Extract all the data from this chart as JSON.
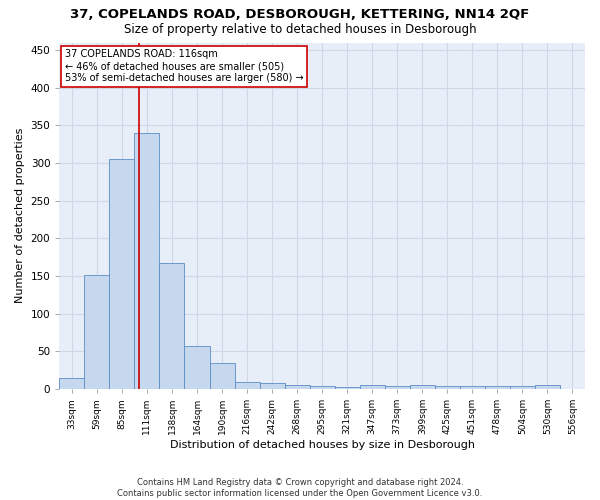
{
  "title": "37, COPELANDS ROAD, DESBOROUGH, KETTERING, NN14 2QF",
  "subtitle": "Size of property relative to detached houses in Desborough",
  "xlabel": "Distribution of detached houses by size in Desborough",
  "ylabel": "Number of detached properties",
  "bar_color": "#c5d8ee",
  "bar_edge_color": "#5b8cc8",
  "bin_labels": [
    "33sqm",
    "59sqm",
    "85sqm",
    "111sqm",
    "138sqm",
    "164sqm",
    "190sqm",
    "216sqm",
    "242sqm",
    "268sqm",
    "295sqm",
    "321sqm",
    "347sqm",
    "373sqm",
    "399sqm",
    "425sqm",
    "451sqm",
    "478sqm",
    "504sqm",
    "530sqm",
    "556sqm"
  ],
  "bar_values": [
    15,
    152,
    305,
    340,
    167,
    57,
    35,
    10,
    8,
    6,
    4,
    3,
    5,
    4,
    5,
    4,
    4,
    4,
    4,
    5,
    0
  ],
  "bin_edges": [
    33,
    59,
    85,
    111,
    138,
    164,
    190,
    216,
    242,
    268,
    295,
    321,
    347,
    373,
    399,
    425,
    451,
    478,
    504,
    530,
    556
  ],
  "property_size": 116,
  "red_line_color": "#cc0000",
  "annotation_line1": "37 COPELANDS ROAD: 116sqm",
  "annotation_line2": "← 46% of detached houses are smaller (505)",
  "annotation_line3": "53% of semi-detached houses are larger (580) →",
  "annotation_box_color": "#ffffff",
  "annotation_box_edge": "#cc0000",
  "ylim": [
    0,
    460
  ],
  "yticks": [
    0,
    50,
    100,
    150,
    200,
    250,
    300,
    350,
    400,
    450
  ],
  "grid_color": "#d0d8e8",
  "background_color": "#e8eef8",
  "footnote_line1": "Contains HM Land Registry data © Crown copyright and database right 2024.",
  "footnote_line2": "Contains public sector information licensed under the Open Government Licence v3.0."
}
